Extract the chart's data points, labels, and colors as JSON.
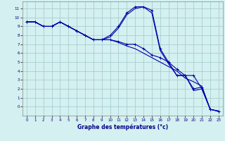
{
  "xlabel": "Graphe des températures (°c)",
  "background_color": "#d4f0f0",
  "grid_color": "#a0c8c8",
  "line_color": "#0000aa",
  "xlim": [
    -0.5,
    23.5
  ],
  "ylim": [
    -1.0,
    11.8
  ],
  "yticks": [
    0,
    1,
    2,
    3,
    4,
    5,
    6,
    7,
    8,
    9,
    10,
    11
  ],
  "xticks": [
    0,
    1,
    2,
    3,
    4,
    5,
    6,
    7,
    8,
    9,
    10,
    11,
    12,
    13,
    14,
    15,
    16,
    17,
    18,
    19,
    20,
    21,
    22,
    23
  ],
  "series": [
    {
      "x": [
        0,
        1,
        2,
        3,
        4,
        5,
        6,
        7,
        8,
        9,
        10,
        11,
        12,
        13,
        14,
        15,
        16,
        17,
        18,
        19,
        20,
        21,
        22,
        23
      ],
      "y": [
        9.5,
        9.5,
        9.0,
        9.0,
        9.5,
        9.0,
        8.5,
        8.0,
        7.5,
        7.5,
        7.5,
        7.3,
        7.0,
        7.0,
        6.5,
        5.8,
        5.5,
        5.0,
        4.2,
        3.5,
        3.5,
        2.0,
        -0.3,
        -0.5
      ],
      "marker": true
    },
    {
      "x": [
        0,
        1,
        2,
        3,
        4,
        5,
        6,
        7,
        8,
        9,
        10,
        11,
        12,
        13,
        14,
        15,
        16,
        17,
        18,
        19,
        20,
        21,
        22,
        23
      ],
      "y": [
        9.5,
        9.5,
        9.0,
        9.0,
        9.5,
        9.0,
        8.5,
        8.0,
        7.5,
        7.5,
        8.0,
        9.0,
        10.5,
        11.2,
        11.2,
        10.8,
        6.5,
        5.0,
        3.5,
        3.5,
        2.0,
        2.2,
        -0.3,
        -0.5
      ],
      "marker": true
    },
    {
      "x": [
        0,
        1,
        2,
        3,
        4,
        5,
        6,
        7,
        8,
        9,
        10,
        11,
        12,
        13,
        14,
        15,
        16,
        17,
        18,
        19,
        20,
        21,
        22,
        23
      ],
      "y": [
        9.5,
        9.5,
        9.0,
        9.0,
        9.5,
        9.0,
        8.5,
        8.0,
        7.5,
        7.5,
        7.5,
        7.2,
        6.8,
        6.5,
        6.0,
        5.5,
        5.0,
        4.5,
        4.0,
        3.2,
        2.8,
        2.3,
        -0.3,
        -0.5
      ],
      "marker": false
    },
    {
      "x": [
        0,
        1,
        2,
        3,
        4,
        5,
        6,
        7,
        8,
        9,
        10,
        11,
        12,
        13,
        14,
        15,
        16,
        17,
        18,
        19,
        20,
        21,
        22,
        23
      ],
      "y": [
        9.5,
        9.5,
        9.0,
        9.0,
        9.5,
        9.0,
        8.5,
        8.0,
        7.5,
        7.5,
        7.8,
        8.8,
        10.3,
        11.0,
        11.2,
        10.5,
        6.3,
        4.8,
        3.5,
        3.5,
        1.8,
        2.0,
        -0.3,
        -0.5
      ],
      "marker": false
    }
  ]
}
